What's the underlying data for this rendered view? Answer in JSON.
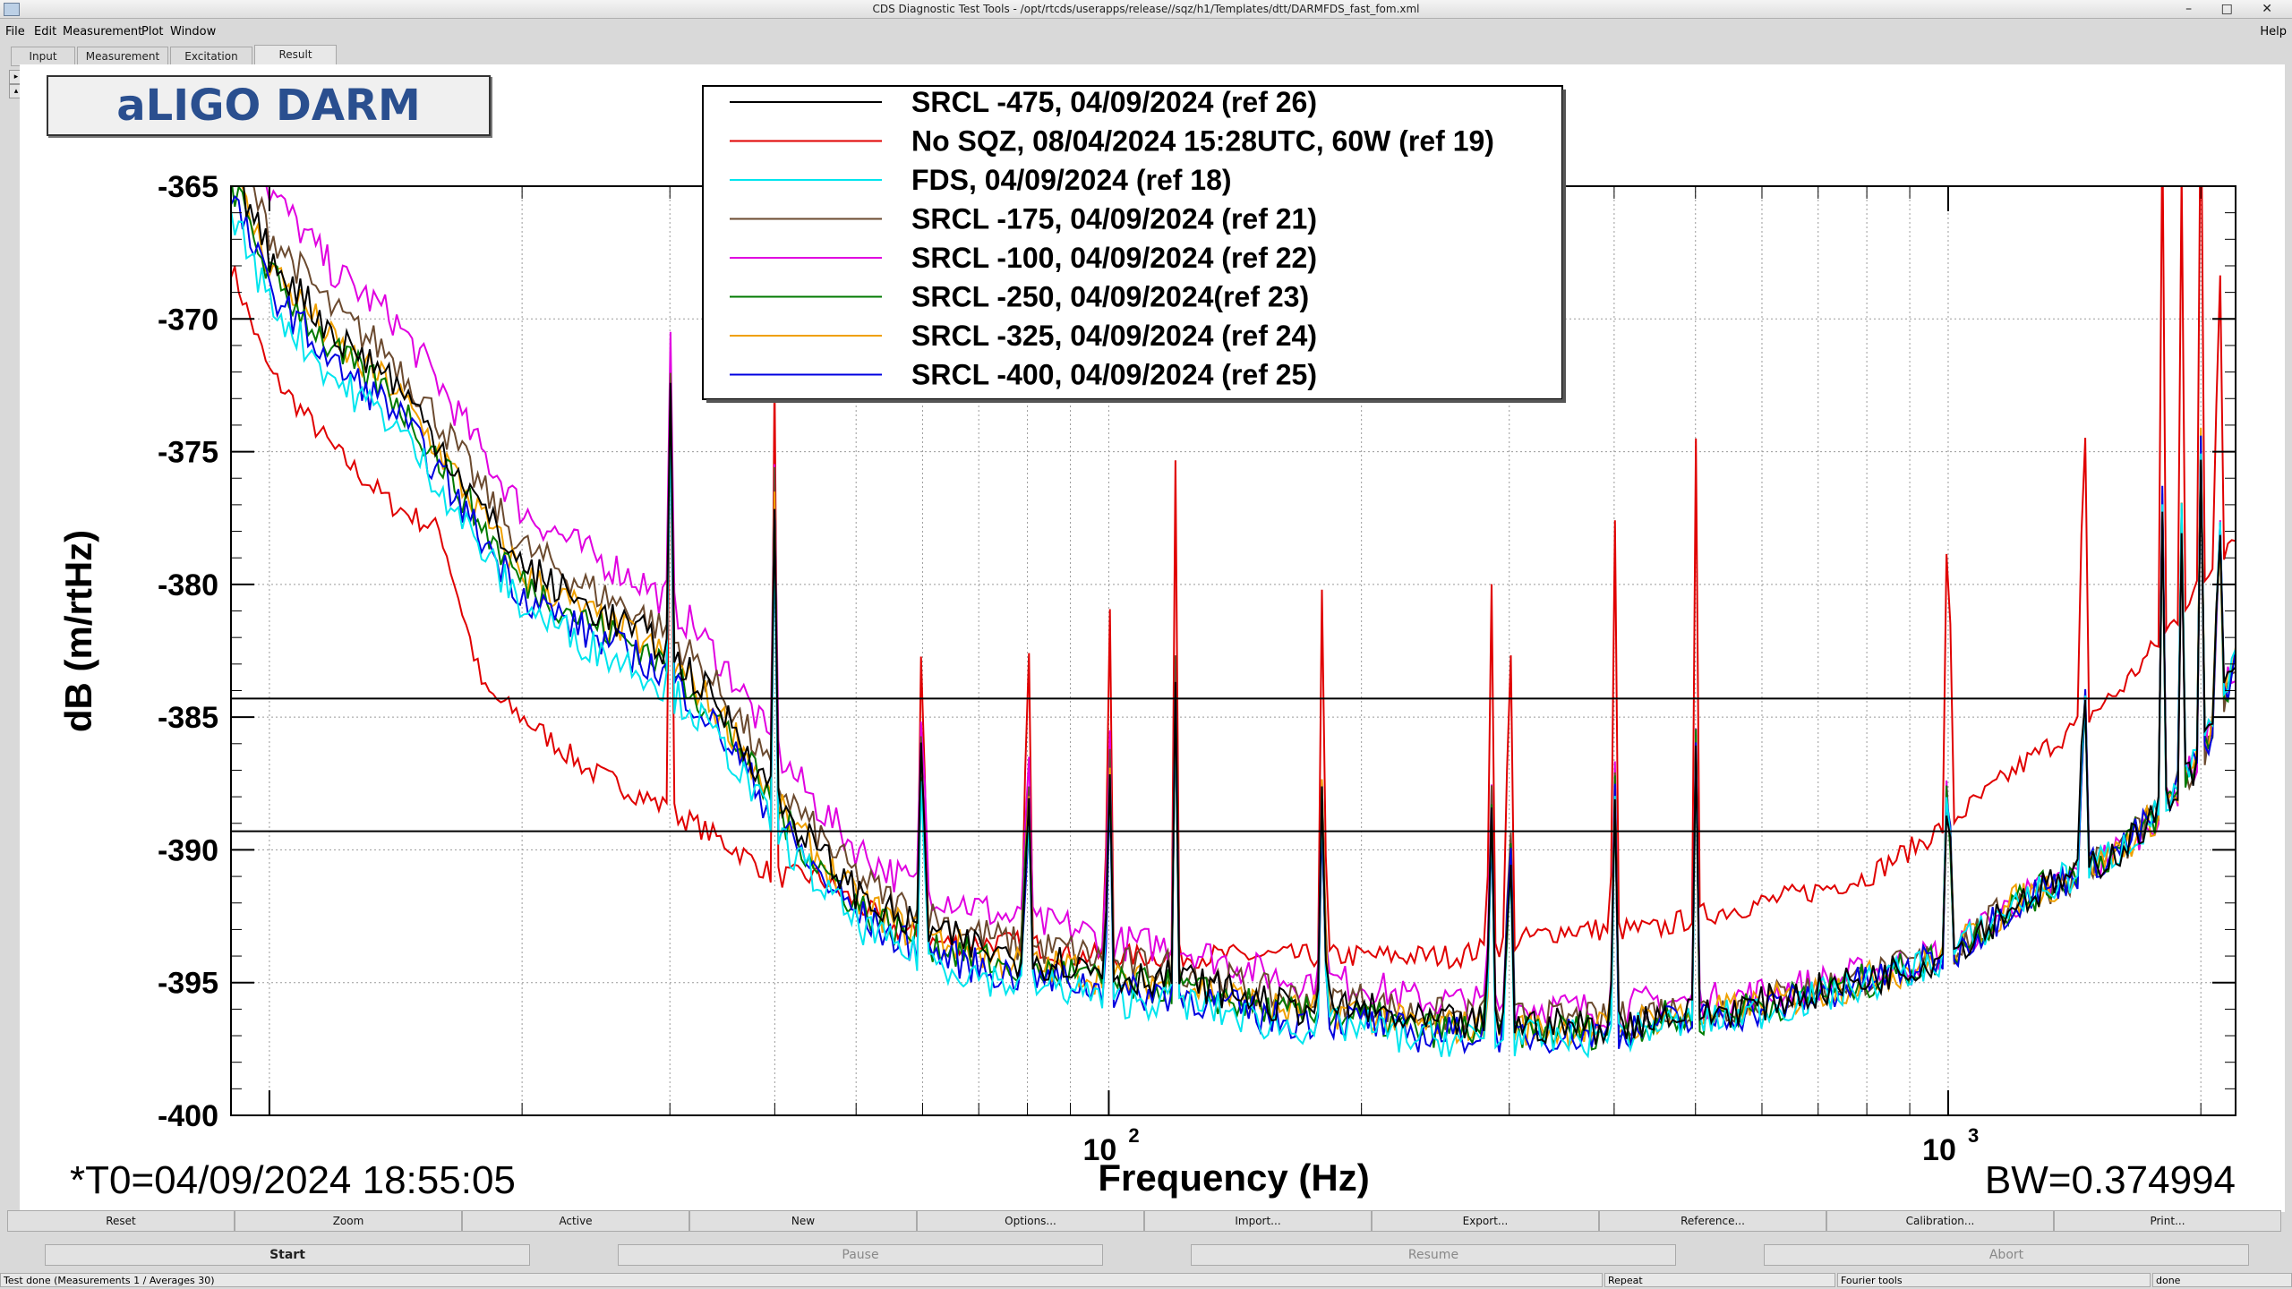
{
  "window": {
    "title": "CDS Diagnostic Test Tools - /opt/rtcds/userapps/release//sqz/h1/Templates/dtt/DARMFDS_fast_fom.xml",
    "controls": "– □ ✕"
  },
  "menu": {
    "items": [
      "File",
      "Edit",
      "Measurement",
      "Plot",
      "Window"
    ],
    "help": "Help"
  },
  "tabs": [
    "Input",
    "Measurement",
    "Excitation",
    "Result"
  ],
  "plot": {
    "title": "aLIGO DARM",
    "t0": "*T0=04/09/2024 18:55:05",
    "bw": "BW=0.374994"
  },
  "chart_data": {
    "type": "line",
    "xlabel": "Frequency (Hz)",
    "ylabel": "dB (m/rtHz)",
    "xscale": "log",
    "xlim": [
      9,
      2200
    ],
    "ylim": [
      -400,
      -365
    ],
    "yticks": [
      "-365",
      "-370",
      "-375",
      "-380",
      "-385",
      "-390",
      "-395",
      "-400"
    ],
    "xtick_labels": [
      {
        "base": "10",
        "exp": "2"
      },
      {
        "base": "10",
        "exp": "3"
      }
    ],
    "horizontal_lines": [
      -384.3,
      -389.3
    ],
    "grid": true,
    "legend_position": "top-center",
    "colors": [
      "#000000",
      "#e00000",
      "#00e5ee",
      "#6b4a2f",
      "#e000e0",
      "#007a00",
      "#f0a000",
      "#0000e0"
    ],
    "series": [
      {
        "name": "SRCL -475, 04/09/2024 (ref 26)",
        "color": "#000000"
      },
      {
        "name": "No SQZ, 08/04/2024 15:28UTC, 60W (ref 19)",
        "color": "#e00000"
      },
      {
        "name": "FDS, 04/09/2024 (ref 18)",
        "color": "#00e5ee"
      },
      {
        "name": "SRCL -175, 04/09/2024 (ref 21)",
        "color": "#6b4a2f"
      },
      {
        "name": "SRCL -100, 04/09/2024 (ref 22)",
        "color": "#e000e0"
      },
      {
        "name": "SRCL -250, 04/09/2024(ref 23)",
        "color": "#007a00"
      },
      {
        "name": "SRCL -325, 04/09/2024 (ref 24)",
        "color": "#f0a000"
      },
      {
        "name": "SRCL -400, 04/09/2024 (ref 25)",
        "color": "#0000e0"
      }
    ],
    "squeezed_baseline": {
      "x": [
        9,
        10,
        12,
        14,
        16,
        18,
        20,
        24,
        28,
        32,
        36,
        40,
        45,
        50,
        56,
        62,
        70,
        80,
        90,
        100,
        120,
        140,
        160,
        180,
        200,
        230,
        260,
        300,
        350,
        400,
        450,
        500,
        600,
        700,
        800,
        900,
        1000,
        1100,
        1200,
        1400,
        1600,
        1800,
        2000,
        2200
      ],
      "y": [
        -365.5,
        -369,
        -372,
        -373.5,
        -376,
        -378.5,
        -380.5,
        -382,
        -383,
        -384.5,
        -386.5,
        -389,
        -391,
        -392.5,
        -393.5,
        -394,
        -394.5,
        -395,
        -395,
        -395.5,
        -395.5,
        -396,
        -396.5,
        -396.5,
        -396.5,
        -397,
        -397,
        -397,
        -397,
        -397,
        -396.5,
        -396.5,
        -396,
        -395.5,
        -395,
        -394.5,
        -394,
        -393,
        -392,
        -391,
        -390,
        -388.5,
        -386.5,
        -383
      ]
    },
    "nosqz_baseline": {
      "x": [
        9,
        10,
        12,
        14,
        16,
        18,
        20,
        24,
        28,
        32,
        36,
        40,
        45,
        50,
        56,
        62,
        70,
        80,
        90,
        100,
        120,
        140,
        160,
        180,
        200,
        230,
        260,
        300,
        350,
        400,
        450,
        500,
        600,
        700,
        800,
        900,
        1000,
        1100,
        1200,
        1400,
        1600,
        1800,
        2000,
        2200
      ],
      "y": [
        -368,
        -372,
        -375,
        -377,
        -378,
        -384,
        -385,
        -387,
        -388,
        -389,
        -390,
        -391,
        -391,
        -392,
        -393,
        -393.5,
        -393.5,
        -393.5,
        -394,
        -394,
        -394,
        -394,
        -394,
        -394,
        -394,
        -394,
        -394,
        -393.5,
        -393,
        -393,
        -393,
        -392.5,
        -392,
        -391.5,
        -391,
        -390,
        -389,
        -388,
        -387,
        -385.5,
        -384,
        -382,
        -380,
        -378
      ]
    },
    "lines_hz": [
      30,
      40,
      60,
      80,
      100,
      120,
      180,
      285,
      300,
      400,
      500,
      1000,
      1450,
      1800,
      1900,
      2000,
      2100
    ]
  },
  "buttons": [
    "Reset",
    "Zoom",
    "Active",
    "New",
    "Options...",
    "Import...",
    "Export...",
    "Reference...",
    "Calibration...",
    "Print..."
  ],
  "controls": [
    "Start",
    "Pause",
    "Resume",
    "Abort"
  ],
  "status": {
    "left": "Test done (Measurements 1 / Averages 30)",
    "repeat": "Repeat",
    "tools": "Fourier tools",
    "done": "done"
  }
}
